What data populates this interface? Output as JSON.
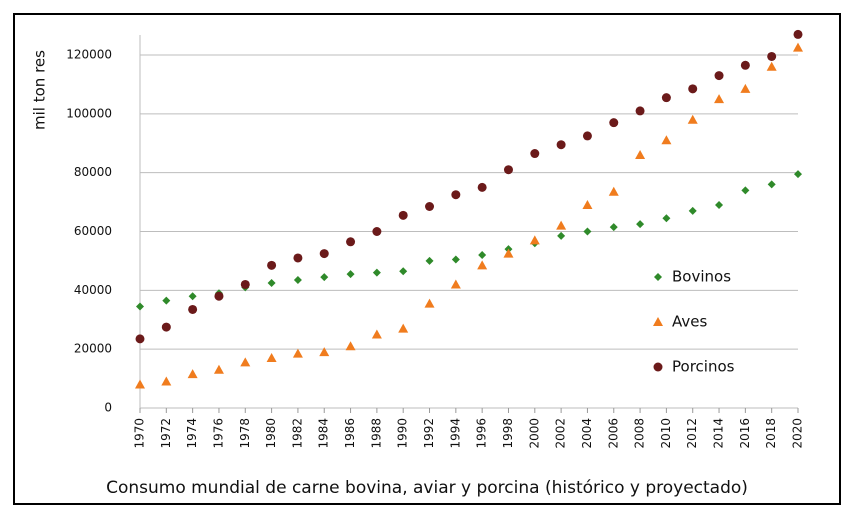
{
  "chart_data": {
    "type": "scatter",
    "title": "Consumo mundial de carne bovina, aviar y porcina (histórico y proyectado)",
    "y_label": "mil ton res",
    "x": [
      1970,
      1972,
      1974,
      1976,
      1978,
      1980,
      1982,
      1984,
      1986,
      1988,
      1990,
      1992,
      1994,
      1996,
      1998,
      2000,
      2002,
      2004,
      2006,
      2008,
      2010,
      2012,
      2014,
      2016,
      2018,
      2020
    ],
    "xlim": [
      1970,
      2020
    ],
    "xticks": [
      1970,
      1972,
      1974,
      1976,
      1978,
      1980,
      1982,
      1984,
      1986,
      1988,
      1990,
      1992,
      1994,
      1996,
      1998,
      2000,
      2002,
      2004,
      2006,
      2008,
      2010,
      2012,
      2014,
      2016,
      2018,
      2020
    ],
    "ylim": [
      0,
      120000
    ],
    "yticks": [
      0,
      20000,
      40000,
      60000,
      80000,
      100000,
      120000
    ],
    "grid": true,
    "legend": "right",
    "series": [
      {
        "name": "Bovinos",
        "color": "#2f8a2a",
        "marker": "diamond",
        "values": [
          34500,
          36500,
          38000,
          39000,
          41000,
          42500,
          43500,
          44500,
          45500,
          46000,
          46500,
          50000,
          50500,
          52000,
          54000,
          56000,
          58500,
          60000,
          61500,
          62500,
          64500,
          67000,
          69000,
          74000,
          76000,
          79500
        ]
      },
      {
        "name": "Aves",
        "color": "#f07c1e",
        "marker": "triangle",
        "values": [
          8000,
          9000,
          11500,
          13000,
          15500,
          17000,
          18500,
          19000,
          21000,
          25000,
          27000,
          35500,
          42000,
          48500,
          52500,
          57000,
          62000,
          69000,
          73500,
          86000,
          91000,
          98000,
          105000,
          108500,
          116000,
          122500
        ]
      },
      {
        "name": "Porcinos",
        "color": "#6b1a1a",
        "marker": "circle",
        "values": [
          23500,
          27500,
          33500,
          38000,
          42000,
          48500,
          51000,
          52500,
          56500,
          60000,
          65500,
          68500,
          72500,
          75000,
          81000,
          86500,
          89500,
          92500,
          97000,
          101000,
          105500,
          108500,
          113000,
          116500,
          119500,
          127000
        ]
      }
    ]
  }
}
